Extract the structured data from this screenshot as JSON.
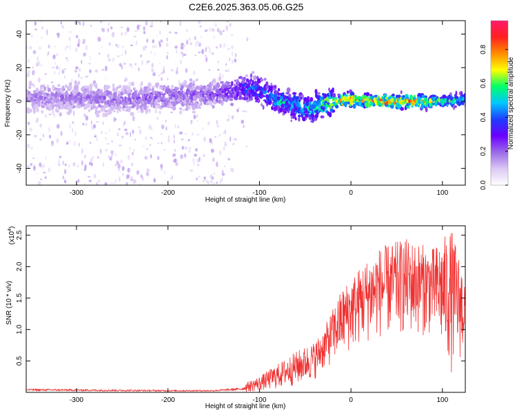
{
  "title": "C2E6.2025.363.05.06.G25",
  "chart_data": [
    {
      "type": "heatmap",
      "title": "C2E6.2025.363.05.06.G25",
      "xlabel": "Height of straight line (km)",
      "ylabel": "Frequency (Hz)",
      "xlim": [
        -355,
        125
      ],
      "ylim": [
        -50,
        48
      ],
      "xticks": [
        -300,
        -200,
        -100,
        0,
        100
      ],
      "yticks": [
        -40,
        -20,
        0,
        20,
        40
      ],
      "colorbar": {
        "label": "Normalized spectral amplitude",
        "range": [
          0,
          0.97
        ],
        "ticks": [
          0.0,
          0.2,
          0.4,
          0.6,
          0.8
        ],
        "colormap": [
          "#ffffff",
          "#dcc8f4",
          "#9b6ae8",
          "#6a00ff",
          "#1f3cff",
          "#00c8ff",
          "#00ff66",
          "#ffff00",
          "#ff8c00",
          "#ff2020",
          "#ff1a6a"
        ]
      },
      "ridge_center_hz": [
        {
          "x": -355,
          "y": 2
        },
        {
          "x": -300,
          "y": 2
        },
        {
          "x": -250,
          "y": 1
        },
        {
          "x": -200,
          "y": 3
        },
        {
          "x": -150,
          "y": 4
        },
        {
          "x": -120,
          "y": 8
        },
        {
          "x": -100,
          "y": 6
        },
        {
          "x": -80,
          "y": 0
        },
        {
          "x": -60,
          "y": -3
        },
        {
          "x": -45,
          "y": -5
        },
        {
          "x": -30,
          "y": -1
        },
        {
          "x": -15,
          "y": 0
        },
        {
          "x": 0,
          "y": 1
        },
        {
          "x": 20,
          "y": 0
        },
        {
          "x": 50,
          "y": 0
        },
        {
          "x": 80,
          "y": 0
        },
        {
          "x": 100,
          "y": 0
        },
        {
          "x": 125,
          "y": 1
        }
      ],
      "ridge_peak_amplitude": [
        {
          "x": -355,
          "y": 0.2
        },
        {
          "x": -150,
          "y": 0.25
        },
        {
          "x": -110,
          "y": 0.45
        },
        {
          "x": -80,
          "y": 0.55
        },
        {
          "x": -50,
          "y": 0.55
        },
        {
          "x": -20,
          "y": 0.75
        },
        {
          "x": 0,
          "y": 0.9
        },
        {
          "x": 60,
          "y": 0.9
        },
        {
          "x": 90,
          "y": 0.7
        },
        {
          "x": 125,
          "y": 0.55
        }
      ],
      "scatter_noise_region_km": [
        -355,
        -130
      ]
    },
    {
      "type": "line",
      "xlabel": "Height of straight line (km)",
      "ylabel": "SNR (10 * v/v)",
      "y_scale_label": "(x10",
      "y_scale_exponent": "4",
      "xlim": [
        -355,
        125
      ],
      "ylim": [
        0,
        2.65
      ],
      "xticks": [
        -300,
        -200,
        -100,
        0,
        100
      ],
      "yticks": [
        0.5,
        1.0,
        1.5,
        2.0,
        2.5
      ],
      "series": [
        {
          "name": "SNR",
          "color": "#f03030",
          "envelope": [
            {
              "x": -355,
              "lo": 0.0,
              "hi": 0.09
            },
            {
              "x": -200,
              "lo": 0.0,
              "hi": 0.06
            },
            {
              "x": -150,
              "lo": 0.0,
              "hi": 0.06
            },
            {
              "x": -120,
              "lo": 0.0,
              "hi": 0.12
            },
            {
              "x": -100,
              "lo": 0.02,
              "hi": 0.25
            },
            {
              "x": -80,
              "lo": 0.05,
              "hi": 0.45
            },
            {
              "x": -60,
              "lo": 0.1,
              "hi": 0.65
            },
            {
              "x": -40,
              "lo": 0.2,
              "hi": 0.8
            },
            {
              "x": -30,
              "lo": 0.35,
              "hi": 1.0
            },
            {
              "x": -10,
              "lo": 0.55,
              "hi": 1.65
            },
            {
              "x": 10,
              "lo": 0.75,
              "hi": 2.0
            },
            {
              "x": 30,
              "lo": 0.85,
              "hi": 2.3
            },
            {
              "x": 60,
              "lo": 0.9,
              "hi": 2.45
            },
            {
              "x": 90,
              "lo": 0.9,
              "hi": 2.3
            },
            {
              "x": 110,
              "lo": 0.3,
              "hi": 2.6
            },
            {
              "x": 125,
              "lo": 0.6,
              "hi": 1.85
            }
          ]
        }
      ]
    }
  ]
}
